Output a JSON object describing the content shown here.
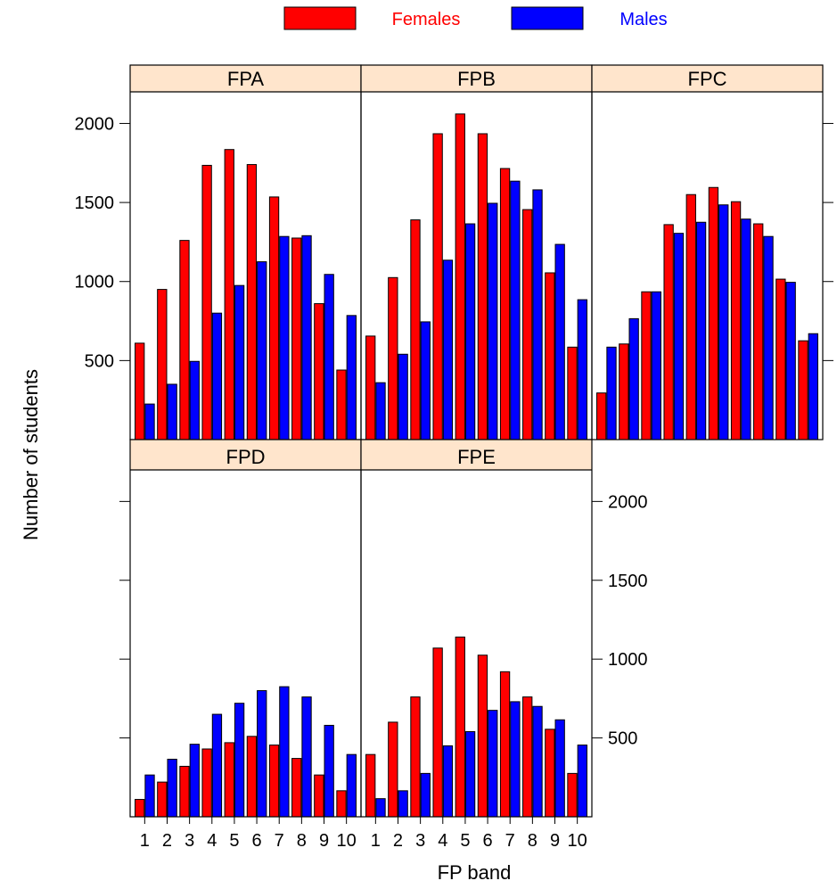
{
  "chart_data": {
    "type": "bar",
    "title": "",
    "xlabel": "FP band",
    "ylabel": "Number of students",
    "categories": [
      "1",
      "2",
      "3",
      "4",
      "5",
      "6",
      "7",
      "8",
      "9",
      "10"
    ],
    "ylim": [
      0,
      2200
    ],
    "yticks": [
      500,
      1000,
      1500,
      2000
    ],
    "legend": {
      "placement": "top",
      "entries": [
        {
          "name": "Females",
          "color": "#ff0000"
        },
        {
          "name": "Males",
          "color": "#0000ff"
        }
      ]
    },
    "strip_color": "#ffe5cc",
    "grid": false,
    "panels": [
      {
        "name": "FPA",
        "series": [
          {
            "name": "Females",
            "values": [
              610,
              950,
              1260,
              1735,
              1835,
              1740,
              1535,
              1275,
              860,
              440
            ]
          },
          {
            "name": "Males",
            "values": [
              225,
              350,
              495,
              800,
              975,
              1125,
              1285,
              1290,
              1045,
              785
            ]
          }
        ]
      },
      {
        "name": "FPB",
        "series": [
          {
            "name": "Females",
            "values": [
              655,
              1025,
              1390,
              1935,
              2060,
              1935,
              1715,
              1455,
              1055,
              585
            ]
          },
          {
            "name": "Males",
            "values": [
              360,
              540,
              745,
              1135,
              1365,
              1495,
              1635,
              1580,
              1235,
              885
            ]
          }
        ]
      },
      {
        "name": "FPC",
        "series": [
          {
            "name": "Females",
            "values": [
              295,
              605,
              935,
              1360,
              1550,
              1595,
              1505,
              1365,
              1015,
              625
            ]
          },
          {
            "name": "Males",
            "values": [
              585,
              765,
              935,
              1305,
              1375,
              1485,
              1395,
              1285,
              995,
              670
            ]
          }
        ]
      },
      {
        "name": "FPD",
        "series": [
          {
            "name": "Females",
            "values": [
              110,
              220,
              320,
              430,
              470,
              510,
              455,
              370,
              265,
              165
            ]
          },
          {
            "name": "Males",
            "values": [
              265,
              365,
              460,
              650,
              720,
              800,
              825,
              760,
              580,
              395
            ]
          }
        ]
      },
      {
        "name": "FPE",
        "series": [
          {
            "name": "Females",
            "values": [
              395,
              600,
              760,
              1070,
              1140,
              1025,
              920,
              760,
              555,
              275
            ]
          },
          {
            "name": "Males",
            "values": [
              115,
              165,
              275,
              450,
              540,
              675,
              730,
              700,
              615,
              455
            ]
          }
        ]
      }
    ]
  }
}
